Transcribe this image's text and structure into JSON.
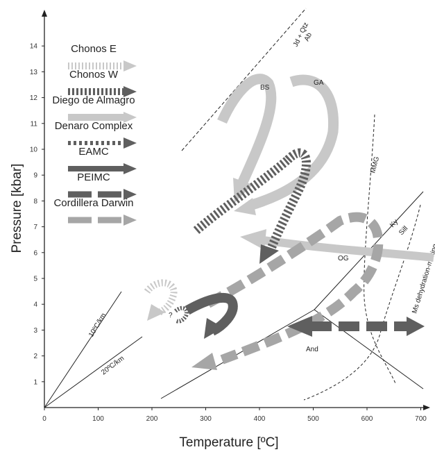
{
  "axes": {
    "x_title": "Temperature [ºC]",
    "y_title": "Pressure [kbar]",
    "x_ticks": [
      "0",
      "100",
      "200",
      "300",
      "400",
      "500",
      "600",
      "700"
    ],
    "y_ticks": [
      "1",
      "2",
      "3",
      "4",
      "5",
      "6",
      "7",
      "8",
      "9",
      "10",
      "11",
      "12",
      "13",
      "14"
    ]
  },
  "legend": [
    {
      "label": "Chonos E",
      "style": "dotted-light"
    },
    {
      "label": "Chonos W",
      "style": "dotted-dark"
    },
    {
      "label": "Diego de Almagro",
      "style": "solid-light"
    },
    {
      "label": "Denaro Complex",
      "style": "dotted-dark-thin"
    },
    {
      "label": "EAMC",
      "style": "solid-dark"
    },
    {
      "label": "PEIMC",
      "style": "dashed-dark"
    },
    {
      "label": "Cordillera Darwin",
      "style": "dashed-mid"
    }
  ],
  "reactions": {
    "jd_qtz": "Jd + Qtz",
    "ab": "Ab",
    "ky": "Ky",
    "sill": "Sill",
    "and": "And",
    "mmg": "MMG",
    "ms_melting": "Ms dehydration-melting"
  },
  "gradients": {
    "g10": "10ºC/km",
    "g20": "20ºC/km"
  },
  "path_labels": {
    "bs": "BS",
    "ga": "GA",
    "og": "OG",
    "question": "?"
  },
  "colors": {
    "light_gray": "#c8c8c8",
    "mid_gray": "#a6a6a6",
    "dark_gray": "#5f5f5f",
    "axis": "#222222"
  }
}
